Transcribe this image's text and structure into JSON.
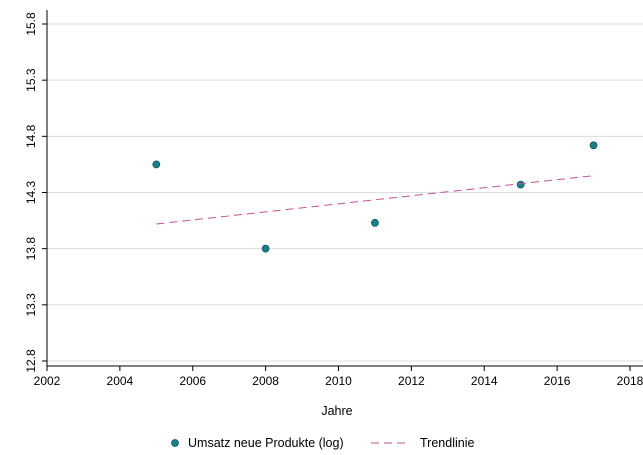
{
  "chart_data": {
    "type": "scatter",
    "xlabel": "Jahre",
    "ylabel": "",
    "xlim": [
      2002,
      2018
    ],
    "ylim": [
      12.8,
      15.8
    ],
    "x_ticks": [
      2002,
      2004,
      2006,
      2008,
      2010,
      2012,
      2014,
      2016,
      2018
    ],
    "y_ticks": [
      "12.8",
      "13.3",
      "13.8",
      "14.3",
      "14.8",
      "15.3",
      "15.8"
    ],
    "grid": true,
    "legend_position": "bottom",
    "series": [
      {
        "name": "Umsatz neue Produkte (log)",
        "type": "scatter",
        "color": "#1a7f86",
        "x": [
          2005,
          2008,
          2011,
          2015,
          2017
        ],
        "y": [
          14.55,
          13.8,
          14.03,
          14.37,
          14.72
        ]
      },
      {
        "name": "Trendlinie",
        "type": "line",
        "style": "dashed",
        "color": "#c2519a",
        "x": [
          2005,
          2017
        ],
        "y": [
          14.02,
          14.45
        ]
      }
    ]
  }
}
